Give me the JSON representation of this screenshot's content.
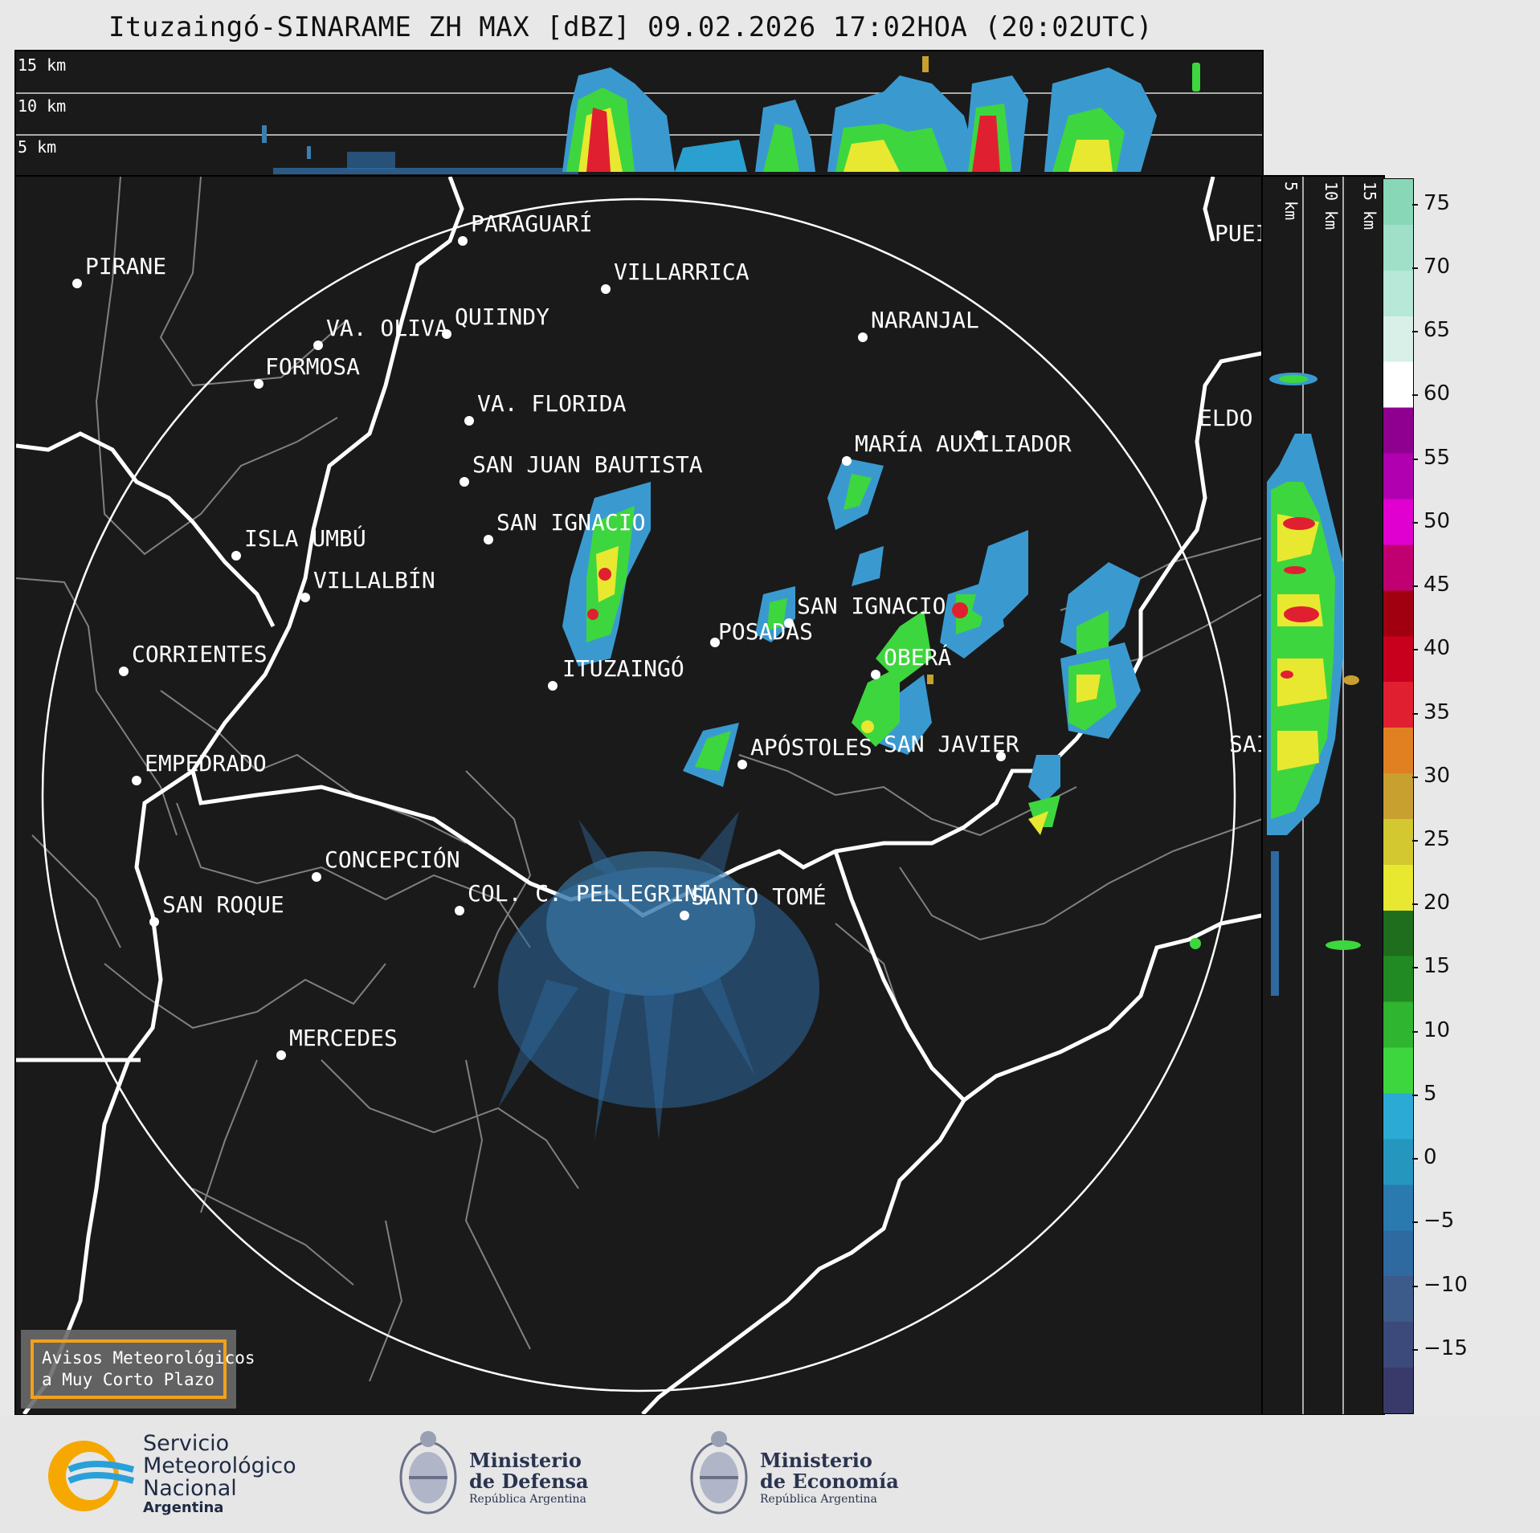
{
  "title": "Ituzaingó-SINARAME ZH MAX [dBZ] 09.02.2026 17:02HOA (20:02UTC)",
  "top_heights": [
    "15 km",
    "10 km",
    "5 km"
  ],
  "side_heights": [
    "5 km",
    "10 km",
    "15 km"
  ],
  "places": [
    {
      "name": "PIRANE"
    },
    {
      "name": "PARAGUARÍ"
    },
    {
      "name": "VILLARRICA"
    },
    {
      "name": "PUEI"
    },
    {
      "name": "QUIINDY"
    },
    {
      "name": "VA. OLIVA"
    },
    {
      "name": "NARANJAL"
    },
    {
      "name": "FORMOSA"
    },
    {
      "name": "VA. FLORIDA"
    },
    {
      "name": "ELDO"
    },
    {
      "name": "MARÍA AUXILIADOR"
    },
    {
      "name": "SAN JUAN BAUTISTA"
    },
    {
      "name": "SAN IGNACIO"
    },
    {
      "name": "ISLA UMBÚ"
    },
    {
      "name": "VILLALBÍN"
    },
    {
      "name": "SAN IGNACIO"
    },
    {
      "name": "POSADAS"
    },
    {
      "name": "CORRIENTES"
    },
    {
      "name": "ITUZAINGÓ"
    },
    {
      "name": "OBERÁ"
    },
    {
      "name": "EMPEDRADO"
    },
    {
      "name": "APÓSTOLES"
    },
    {
      "name": "SAN JAVIER"
    },
    {
      "name": "SAI"
    },
    {
      "name": "CONCEPCIÓN"
    },
    {
      "name": "COL. C. PELLEGRINI"
    },
    {
      "name": "SANTO TOMÉ"
    },
    {
      "name": "SAN ROQUE"
    },
    {
      "name": "MERCEDES"
    }
  ],
  "warning_box": {
    "line1": "Avisos Meteorológicos",
    "line2": "a Muy Corto Plazo"
  },
  "colorbar": {
    "ticks": [
      "75",
      "70",
      "65",
      "60",
      "55",
      "50",
      "45",
      "40",
      "35",
      "30",
      "25",
      "20",
      "15",
      "10",
      "5",
      "0",
      "−5",
      "−10",
      "−15"
    ],
    "range_min": -20,
    "range_max": 77,
    "colors": [
      "#3a3a6a",
      "#3b4a7a",
      "#3c5a8a",
      "#2e6aa0",
      "#2a7ab0",
      "#2596be",
      "#2aaad4",
      "#3ed63e",
      "#2fb52f",
      "#228a22",
      "#1e6e1e",
      "#e8e830",
      "#d4c830",
      "#c8a030",
      "#e08020",
      "#e02030",
      "#c8001e",
      "#a00010",
      "#c00070",
      "#e000d0",
      "#b000b0",
      "#900090",
      "#ffffff",
      "#d8f0e8",
      "#b8e8d8",
      "#a0e0c8",
      "#88d8b8"
    ]
  },
  "footer": {
    "smn": {
      "line1": "Servicio",
      "line2": "Meteorológico",
      "line3": "Nacional",
      "line4": "Argentina"
    },
    "defensa": {
      "line1": "Ministerio",
      "line2": "de Defensa",
      "line3": "República Argentina"
    },
    "economia": {
      "line1": "Ministerio",
      "line2": "de Economía",
      "line3": "República Argentina"
    }
  }
}
